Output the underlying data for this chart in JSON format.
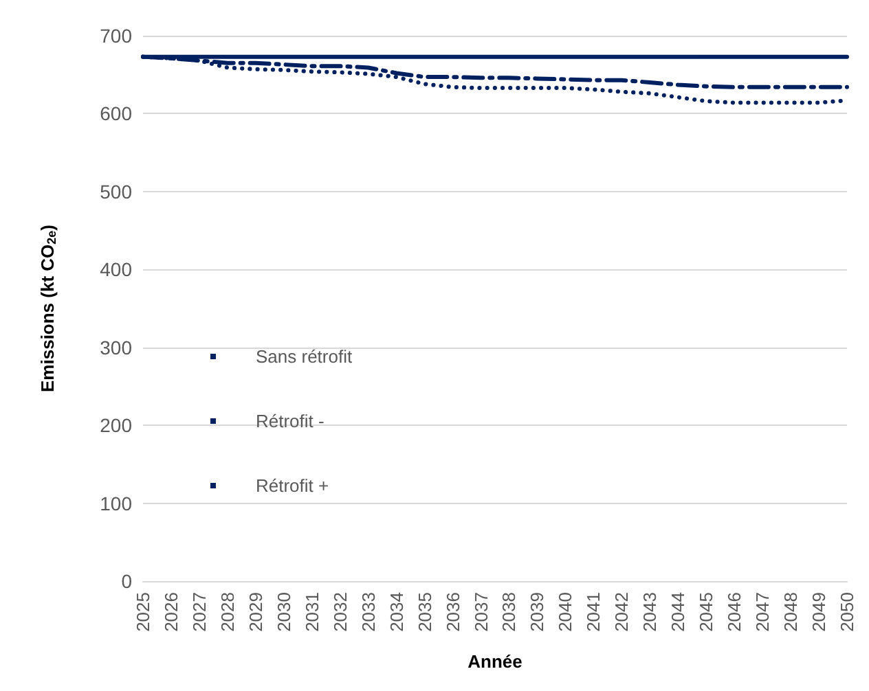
{
  "chart_data": {
    "type": "line",
    "xlabel": "Année",
    "ylabel": "Emissions (kt CO$_{2e}$)",
    "categories": [
      "2025",
      "2026",
      "2027",
      "2028",
      "2029",
      "2030",
      "2031",
      "2032",
      "2033",
      "2034",
      "2035",
      "2036",
      "2037",
      "2038",
      "2039",
      "2040",
      "2041",
      "2042",
      "2043",
      "2044",
      "2045",
      "2046",
      "2047",
      "2048",
      "2049",
      "2050"
    ],
    "ylim": [
      0,
      700
    ],
    "yticks": [
      0,
      100,
      200,
      300,
      400,
      500,
      600,
      700
    ],
    "grid": "y",
    "legend": "left",
    "marker": "none",
    "series": [
      {
        "name": "Sans rétrofit",
        "color": "#002060",
        "line_style": "solid",
        "values": [
          673,
          673,
          673,
          673,
          673,
          673,
          673,
          673,
          673,
          673,
          673,
          673,
          673,
          673,
          673,
          673,
          673,
          673,
          673,
          673,
          673,
          673,
          673,
          673,
          673,
          673
        ]
      },
      {
        "name": "Rétrofit -",
        "color": "#002060",
        "line_style": "dashed",
        "values": [
          673,
          671,
          668,
          665,
          665,
          663,
          661,
          661,
          659,
          652,
          647,
          647,
          646,
          646,
          645,
          644,
          643,
          643,
          640,
          637,
          635,
          634,
          634,
          634,
          634,
          634
        ]
      },
      {
        "name": "Rétrofit +",
        "color": "#002060",
        "line_style": "dotted",
        "values": [
          673,
          671,
          668,
          659,
          657,
          656,
          654,
          653,
          651,
          647,
          638,
          634,
          633,
          633,
          633,
          633,
          631,
          628,
          626,
          621,
          616,
          614,
          614,
          614,
          614,
          617
        ]
      }
    ]
  }
}
